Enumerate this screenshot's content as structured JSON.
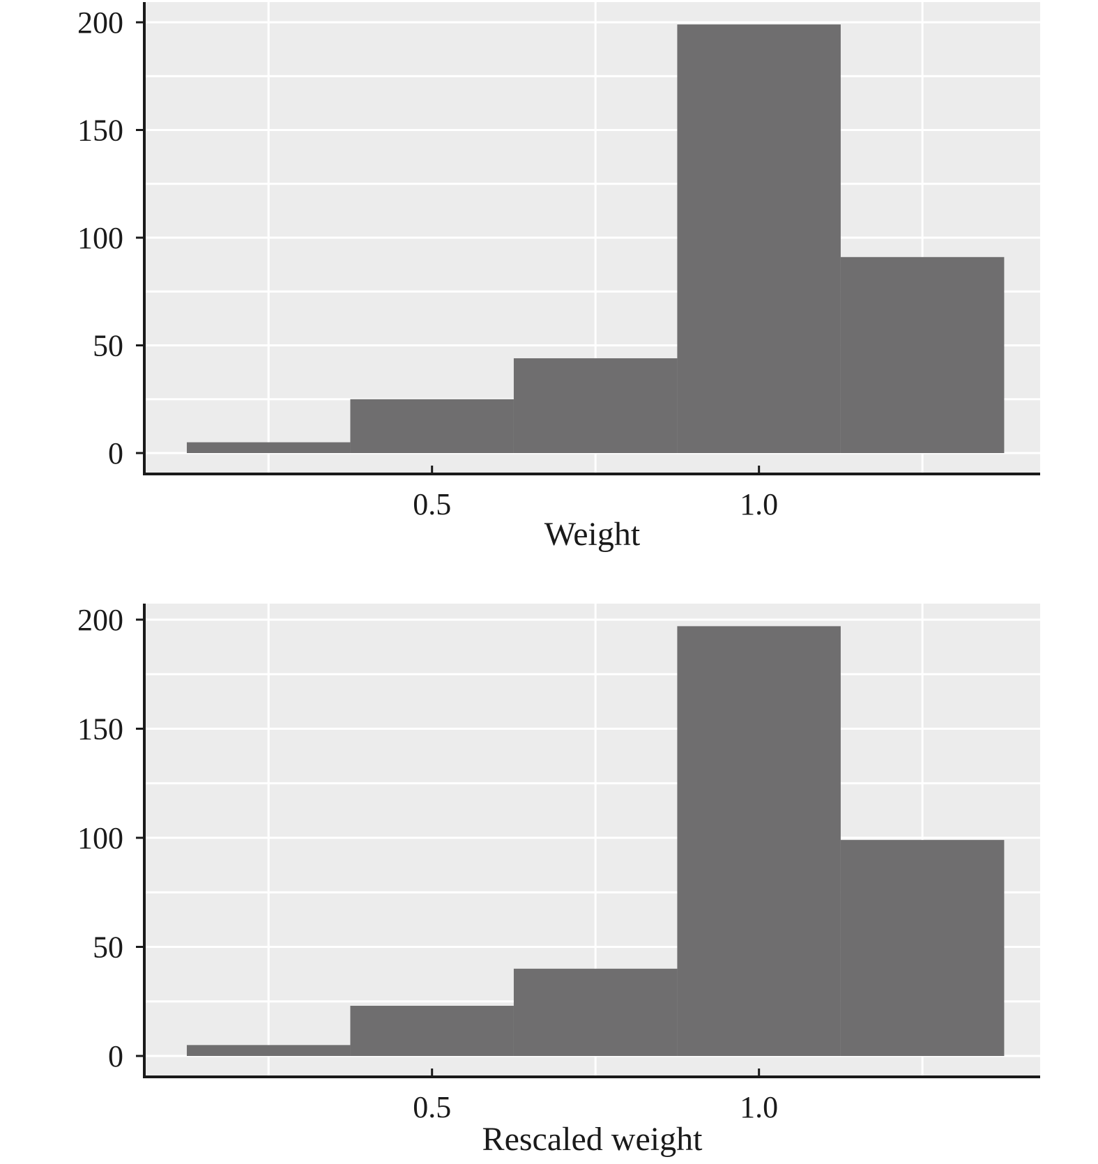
{
  "colors": {
    "panel_background": "#ececec",
    "grid": "#ffffff",
    "bar_fill": "#6f6e6f",
    "axis": "#1a1a1a",
    "text": "#1a1a1a"
  },
  "chart_data": [
    {
      "type": "bar",
      "histogram": true,
      "title": "",
      "xlabel": "Weight",
      "ylabel": "",
      "xlim": [
        0.06,
        1.43
      ],
      "ylim": [
        0,
        200
      ],
      "x_ticks": [
        0.5,
        1.0
      ],
      "x_tick_labels": [
        "0.5",
        "1.0"
      ],
      "x_minor_grid": [
        0.25,
        0.75,
        1.25
      ],
      "y_ticks": [
        0,
        50,
        100,
        150,
        200
      ],
      "y_tick_labels": [
        "0",
        "50",
        "100",
        "150",
        "200"
      ],
      "y_minor_grid": [
        25,
        75,
        125,
        175
      ],
      "grid": true,
      "bins": [
        {
          "x0": 0.125,
          "x1": 0.375,
          "count": 5
        },
        {
          "x0": 0.375,
          "x1": 0.625,
          "count": 25
        },
        {
          "x0": 0.625,
          "x1": 0.875,
          "count": 44
        },
        {
          "x0": 0.875,
          "x1": 1.125,
          "count": 199
        },
        {
          "x0": 1.125,
          "x1": 1.375,
          "count": 91
        }
      ]
    },
    {
      "type": "bar",
      "histogram": true,
      "title": "",
      "xlabel": "Rescaled weight",
      "ylabel": "",
      "xlim": [
        0.06,
        1.43
      ],
      "ylim": [
        0,
        200
      ],
      "x_ticks": [
        0.5,
        1.0
      ],
      "x_tick_labels": [
        "0.5",
        "1.0"
      ],
      "x_minor_grid": [
        0.25,
        0.75,
        1.25
      ],
      "y_ticks": [
        0,
        50,
        100,
        150,
        200
      ],
      "y_tick_labels": [
        "0",
        "50",
        "100",
        "150",
        "200"
      ],
      "y_minor_grid": [
        25,
        75,
        125,
        175
      ],
      "grid": true,
      "bins": [
        {
          "x0": 0.125,
          "x1": 0.375,
          "count": 5
        },
        {
          "x0": 0.375,
          "x1": 0.625,
          "count": 23
        },
        {
          "x0": 0.625,
          "x1": 0.875,
          "count": 40
        },
        {
          "x0": 0.875,
          "x1": 1.125,
          "count": 197
        },
        {
          "x0": 1.125,
          "x1": 1.375,
          "count": 99
        }
      ]
    }
  ]
}
